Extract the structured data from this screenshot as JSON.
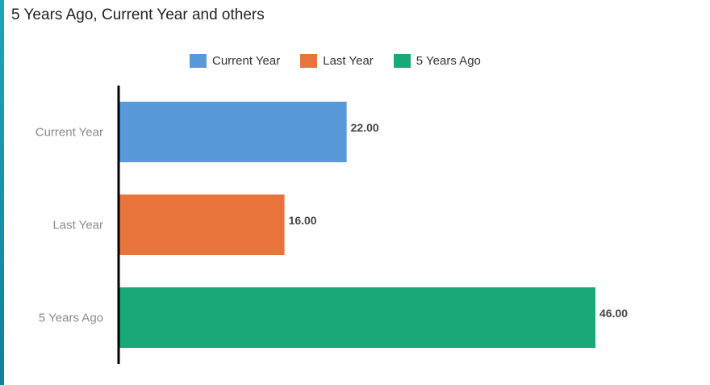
{
  "chart_data": {
    "type": "bar",
    "orientation": "horizontal",
    "title": "5 Years Ago, Current Year and others",
    "categories": [
      "Current Year",
      "Last Year",
      "5 Years Ago"
    ],
    "values": [
      22.0,
      16.0,
      46.0
    ],
    "value_labels": [
      "22.00",
      "16.00",
      "46.00"
    ],
    "colors": [
      "#5899DA",
      "#E8743B",
      "#19A979"
    ],
    "legend": {
      "placement": "top-center",
      "entries": [
        "Current Year",
        "Last Year",
        "5 Years Ago"
      ]
    },
    "xlim": [
      0,
      50
    ],
    "grid": false
  }
}
